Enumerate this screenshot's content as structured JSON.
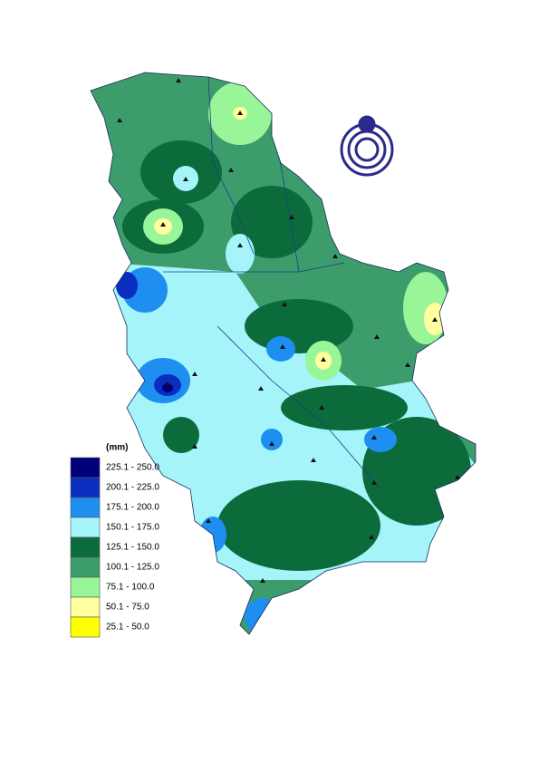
{
  "legend": {
    "title": "(mm)",
    "items": [
      {
        "label": "225.1 - 250.0",
        "color": "#00007a"
      },
      {
        "label": "200.1 - 225.0",
        "color": "#0a2fc0"
      },
      {
        "label": "175.1 - 200.0",
        "color": "#1e8ff0"
      },
      {
        "label": "150.1 - 175.0",
        "color": "#a4f4fa"
      },
      {
        "label": "125.1 - 150.0",
        "color": "#0c6b3b"
      },
      {
        "label": "100.1 - 125.0",
        "color": "#3c9c6c"
      },
      {
        "label": "75.1 - 100.0",
        "color": "#98f598"
      },
      {
        "label": "50.1 - 75.0",
        "color": "#ffffa0"
      },
      {
        "label": "25.1 - 50.0",
        "color": "#ffff00"
      }
    ]
  }
}
